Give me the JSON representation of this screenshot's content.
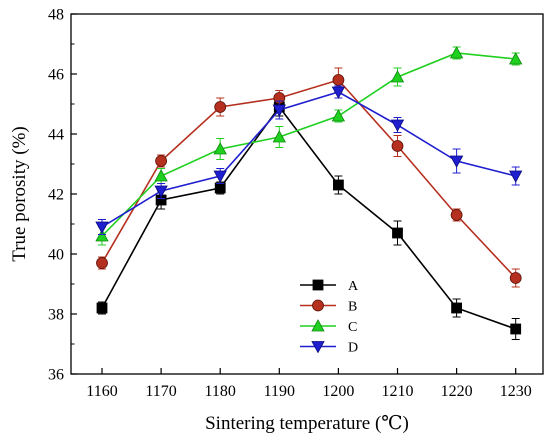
{
  "chart_data": {
    "type": "line",
    "title": "",
    "xlabel": "Sintering temperature (℃)",
    "ylabel": "True porosity (%)",
    "x": [
      1160,
      1170,
      1180,
      1190,
      1200,
      1210,
      1220,
      1230
    ],
    "xticks": [
      "1160",
      "1170",
      "1180",
      "1190",
      "1200",
      "1210",
      "1220",
      "1230"
    ],
    "yticks": [
      "36",
      "38",
      "40",
      "42",
      "44",
      "46",
      "48"
    ],
    "ylim": [
      36,
      48
    ],
    "grid": false,
    "legend_position": "bottom-center",
    "series": [
      {
        "name": "A",
        "color": "#000000",
        "marker": "square",
        "values": [
          38.2,
          41.8,
          42.2,
          44.9,
          42.3,
          40.7,
          38.2,
          37.5
        ],
        "errors": [
          0.2,
          0.3,
          0.2,
          0.3,
          0.3,
          0.4,
          0.3,
          0.35
        ]
      },
      {
        "name": "B",
        "color": "#b5301e",
        "marker": "circle",
        "values": [
          39.7,
          43.1,
          44.9,
          45.2,
          45.8,
          43.6,
          41.3,
          39.2
        ],
        "errors": [
          0.2,
          0.2,
          0.3,
          0.25,
          0.4,
          0.35,
          0.2,
          0.3
        ]
      },
      {
        "name": "C",
        "color": "#1fd01f",
        "marker": "triangle-up",
        "values": [
          40.6,
          42.6,
          43.5,
          43.9,
          44.6,
          45.9,
          46.7,
          46.5
        ],
        "errors": [
          0.3,
          0.25,
          0.35,
          0.35,
          0.2,
          0.3,
          0.2,
          0.2
        ]
      },
      {
        "name": "D",
        "color": "#1f1fd0",
        "marker": "triangle-down",
        "values": [
          40.9,
          42.1,
          42.6,
          44.8,
          45.4,
          44.3,
          43.1,
          42.6
        ],
        "errors": [
          0.25,
          0.25,
          0.25,
          0.3,
          0.2,
          0.25,
          0.4,
          0.3
        ]
      }
    ]
  }
}
